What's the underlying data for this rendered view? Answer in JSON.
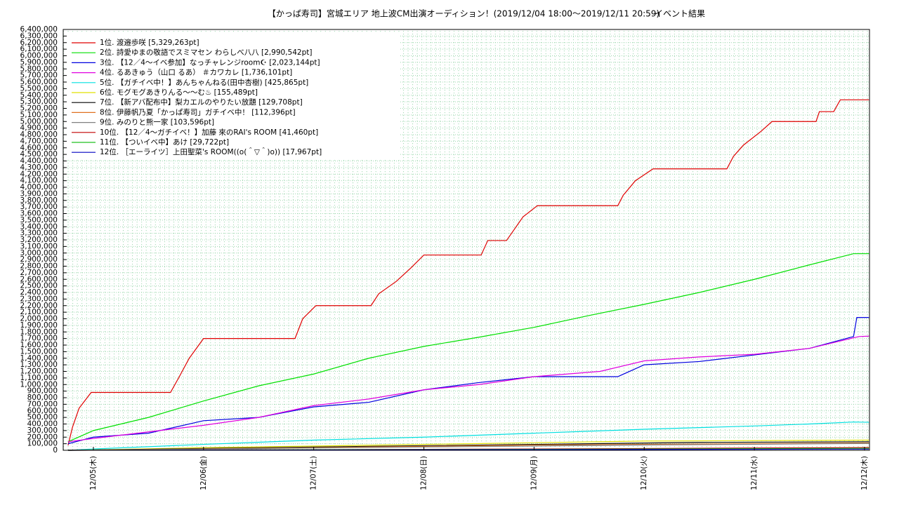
{
  "chart_data": {
    "type": "line",
    "title": "【かっぱ寿司】宮城エリア 地上波CM出演オーディション！(2019/12/04 18:00～2019/12/11 20:59)",
    "subtitle": "イベント結果",
    "grid": true,
    "legend": "upper-left",
    "xlim": [
      -0.274,
      7.045
    ],
    "xticks": [
      {
        "value": 0,
        "label": "12/05(木)"
      },
      {
        "value": 1,
        "label": "12/06(金)"
      },
      {
        "value": 2,
        "label": "12/07(土)"
      },
      {
        "value": 3,
        "label": "12/08(日)"
      },
      {
        "value": 4,
        "label": "12/09(月)"
      },
      {
        "value": 5,
        "label": "12/10(火)"
      },
      {
        "value": 6,
        "label": "12/11(水)"
      },
      {
        "value": 7,
        "label": "12/12(木)"
      }
    ],
    "ylim": [
      0,
      6400000
    ],
    "yticks": [
      0,
      {
        "value": 100000,
        "label": "100,000"
      },
      {
        "value": 200000,
        "label": "200,000"
      },
      {
        "value": 300000,
        "label": "300,000"
      },
      {
        "value": 400000,
        "label": "400,000"
      },
      {
        "value": 500000,
        "label": "500,000"
      },
      {
        "value": 600000,
        "label": "600,000"
      },
      {
        "value": 700000,
        "label": "700,000"
      },
      {
        "value": 800000,
        "label": "800,000"
      },
      {
        "value": 900000,
        "label": "900,000"
      },
      {
        "value": 1000000,
        "label": "1,000,000"
      },
      {
        "value": 1100000,
        "label": "1,100,000"
      },
      {
        "value": 1200000,
        "label": "1,200,000"
      },
      {
        "value": 1300000,
        "label": "1,300,000"
      },
      {
        "value": 1400000,
        "label": "1,400,000"
      },
      {
        "value": 1500000,
        "label": "1,500,000"
      },
      {
        "value": 1600000,
        "label": "1,600,000"
      },
      {
        "value": 1700000,
        "label": "1,700,000"
      },
      {
        "value": 1800000,
        "label": "1,800,000"
      },
      {
        "value": 1900000,
        "label": "1,900,000"
      },
      {
        "value": 2000000,
        "label": "2,000,000"
      },
      {
        "value": 2100000,
        "label": "2,100,000"
      },
      {
        "value": 2200000,
        "label": "2,200,000"
      },
      {
        "value": 2300000,
        "label": "2,300,000"
      },
      {
        "value": 2400000,
        "label": "2,400,000"
      },
      {
        "value": 2500000,
        "label": "2,500,000"
      },
      {
        "value": 2600000,
        "label": "2,600,000"
      },
      {
        "value": 2700000,
        "label": "2,700,000"
      },
      {
        "value": 2800000,
        "label": "2,800,000"
      },
      {
        "value": 2900000,
        "label": "2,900,000"
      },
      {
        "value": 3000000,
        "label": "3,000,000"
      },
      {
        "value": 3100000,
        "label": "3,100,000"
      },
      {
        "value": 3200000,
        "label": "3,200,000"
      },
      {
        "value": 3300000,
        "label": "3,300,000"
      },
      {
        "value": 3400000,
        "label": "3,400,000"
      },
      {
        "value": 3500000,
        "label": "3,500,000"
      },
      {
        "value": 3600000,
        "label": "3,600,000"
      },
      {
        "value": 3700000,
        "label": "3,700,000"
      },
      {
        "value": 3800000,
        "label": "3,800,000"
      },
      {
        "value": 3900000,
        "label": "3,900,000"
      },
      {
        "value": 4000000,
        "label": "4,000,000"
      },
      {
        "value": 4100000,
        "label": "4,100,000"
      },
      {
        "value": 4200000,
        "label": "4,200,000"
      },
      {
        "value": 4300000,
        "label": "4,300,000"
      },
      {
        "value": 4400000,
        "label": "4,400,000"
      },
      {
        "value": 4500000,
        "label": "4,500,000"
      },
      {
        "value": 4600000,
        "label": "4,600,000"
      },
      {
        "value": 4700000,
        "label": "4,700,000"
      },
      {
        "value": 4800000,
        "label": "4,800,000"
      },
      {
        "value": 4900000,
        "label": "4,900,000"
      },
      {
        "value": 5000000,
        "label": "5,000,000"
      },
      {
        "value": 5100000,
        "label": "5,100,000"
      },
      {
        "value": 5200000,
        "label": "5,200,000"
      },
      {
        "value": 5300000,
        "label": "5,300,000"
      },
      {
        "value": 5400000,
        "label": "5,400,000"
      },
      {
        "value": 5500000,
        "label": "5,500,000"
      },
      {
        "value": 5600000,
        "label": "5,600,000"
      },
      {
        "value": 5700000,
        "label": "5,700,000"
      },
      {
        "value": 5800000,
        "label": "5,800,000"
      },
      {
        "value": 5900000,
        "label": "5,900,000"
      },
      {
        "value": 6000000,
        "label": "6,000,000"
      },
      {
        "value": 6100000,
        "label": "6,100,000"
      },
      {
        "value": 6200000,
        "label": "6,200,000"
      },
      {
        "value": 6300000,
        "label": "6,300,000"
      },
      {
        "value": 6400000,
        "label": "6,400,000"
      }
    ],
    "series": [
      {
        "name": "1位. 渡邉歩咲 [5,329,263pt]",
        "color": "#e00000",
        "x": [
          -0.23,
          -0.19,
          -0.13,
          -0.02,
          0.7,
          0.78,
          0.87,
          1.0,
          1.83,
          1.9,
          2.02,
          2.52,
          2.59,
          2.75,
          2.88,
          3.0,
          3.52,
          3.58,
          3.75,
          3.9,
          4.03,
          4.76,
          4.81,
          4.92,
          5.08,
          5.75,
          5.81,
          5.9,
          6.06,
          6.16,
          6.56,
          6.59,
          6.72,
          6.78,
          7.04
        ],
        "values": [
          75000,
          350000,
          640000,
          880000,
          880000,
          1120000,
          1400000,
          1700000,
          1700000,
          2000000,
          2200000,
          2200000,
          2380000,
          2570000,
          2770000,
          2970000,
          2970000,
          3190000,
          3190000,
          3550000,
          3720000,
          3720000,
          3880000,
          4100000,
          4280000,
          4280000,
          4470000,
          4640000,
          4850000,
          5000000,
          5000000,
          5150000,
          5150000,
          5330000,
          5330000
        ]
      },
      {
        "name": "2位. 詩愛ゆまの敬語でスミマセン わらしべ八八 [2,990,542pt]",
        "color": "#00e000",
        "x": [
          -0.23,
          0,
          0.5,
          1,
          1.5,
          2,
          2.5,
          3,
          3.5,
          4,
          4.5,
          5,
          5.5,
          6,
          6.5,
          6.9,
          7.04
        ],
        "values": [
          130000,
          300000,
          500000,
          750000,
          980000,
          1160000,
          1400000,
          1580000,
          1720000,
          1870000,
          2050000,
          2220000,
          2400000,
          2600000,
          2820000,
          2990000,
          2990000
        ]
      },
      {
        "name": "3位. 【12／4～イベ参加】なっチャレンジroom☪ [2,023,144pt]",
        "color": "#0000e0",
        "x": [
          -0.23,
          0,
          0.5,
          1,
          1.5,
          2,
          2.5,
          3,
          3.5,
          4,
          4.76,
          5,
          5.5,
          6,
          6.5,
          6.9,
          6.93,
          7.04
        ],
        "values": [
          100000,
          200000,
          260000,
          450000,
          500000,
          660000,
          730000,
          920000,
          1030000,
          1120000,
          1120000,
          1300000,
          1350000,
          1450000,
          1550000,
          1730000,
          2020000,
          2020000
        ]
      },
      {
        "name": "4位. るあきゅう（山口 るあ） ＃カワカレ [1,736,101pt]",
        "color": "#e000e0",
        "x": [
          -0.23,
          0,
          0.5,
          1,
          1.5,
          2,
          2.5,
          3,
          3.5,
          4,
          4.6,
          5,
          5.5,
          6,
          6.5,
          6.95,
          7.04
        ],
        "values": [
          130000,
          180000,
          280000,
          380000,
          500000,
          680000,
          780000,
          920000,
          1000000,
          1120000,
          1200000,
          1360000,
          1420000,
          1460000,
          1550000,
          1730000,
          1736000
        ]
      },
      {
        "name": "5位. 【ガチイベ中！】あんちゃんねる(田中杏樹) [425,865pt]",
        "color": "#00e0e0",
        "x": [
          -0.23,
          0,
          1,
          2,
          3,
          4,
          5,
          6,
          6.5,
          6.9,
          7.04
        ],
        "values": [
          0,
          20000,
          90000,
          155000,
          200000,
          260000,
          320000,
          370000,
          400000,
          430000,
          426000
        ]
      },
      {
        "name": "6位. モグモグあきりんる～～む♨ [155,489pt]",
        "color": "#e0e000",
        "x": [
          -0.23,
          1,
          3,
          5,
          7.04
        ],
        "values": [
          0,
          40000,
          90000,
          140000,
          155000
        ]
      },
      {
        "name": "7位. 【新アバ配布中】梨カエルのやりたい放題 [129,708pt]",
        "color": "#000000",
        "x": [
          -0.23,
          2,
          4,
          5.5,
          7.04
        ],
        "values": [
          0,
          50000,
          90000,
          120000,
          130000
        ]
      },
      {
        "name": "8位. 伊藤帆乃夏「かっぱ寿司」ガチイベ中！ [112,396pt]",
        "color": "#e07020",
        "x": [
          -0.23,
          2,
          4,
          6,
          7.04
        ],
        "values": [
          0,
          40000,
          80000,
          100000,
          112000
        ]
      },
      {
        "name": "9位. みのりと熊一家 [103,596pt]",
        "color": "#808080",
        "x": [
          -0.23,
          3,
          5,
          7.04
        ],
        "values": [
          0,
          50000,
          80000,
          104000
        ]
      },
      {
        "name": "10位. 【12／4～ガチイベ！】加藤 來のRAI's ROOM [41,460pt]",
        "color": "#c00000",
        "x": [
          -0.23,
          4,
          6,
          7.04
        ],
        "values": [
          0,
          20000,
          35000,
          41000
        ]
      },
      {
        "name": "11位. 【ついイベ中】あけ [29,722pt]",
        "color": "#20c020",
        "x": [
          -0.23,
          4,
          7.04
        ],
        "values": [
          0,
          15000,
          30000
        ]
      },
      {
        "name": "12位. ［エーライツ］上田聖菜's ROOM((o(＾▽＾)o)) [17,967pt]",
        "color": "#0000c0",
        "x": [
          -0.23,
          4,
          7.04
        ],
        "values": [
          0,
          10000,
          18000
        ]
      }
    ]
  }
}
